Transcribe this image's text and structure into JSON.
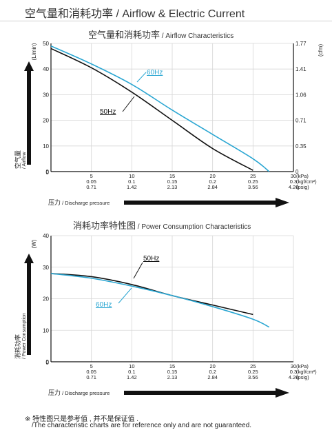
{
  "header": {
    "title": "空气量和消耗功率 / Airflow & Electric Current"
  },
  "chart_data": [
    {
      "type": "line",
      "title": "空气量和消耗功率",
      "subtitle": "/ Airflow Characteristics",
      "ylabel": "(L/min)",
      "ylabel_right": "(cfm)",
      "y_axis_label": "空气量 / Airflow",
      "xlabel": "压力 / Discharge pressure",
      "ylim": [
        0,
        50
      ],
      "yticks": [
        "0",
        "10",
        "20",
        "30",
        "40",
        "50"
      ],
      "yticks_right": [
        "0",
        "0.35",
        "0.71",
        "1.06",
        "1.41",
        "1.77"
      ],
      "xlim": [
        0,
        30
      ],
      "x_units": [
        "(kPa)",
        "(kgf/cm²)",
        "(psig)"
      ],
      "xticks": [
        {
          "kpa": "5",
          "kgf": "0.05",
          "psig": "0.71"
        },
        {
          "kpa": "10",
          "kgf": "0.1",
          "psig": "1.42"
        },
        {
          "kpa": "15",
          "kgf": "0.15",
          "psig": "2.13"
        },
        {
          "kpa": "20",
          "kgf": "0.2",
          "psig": "2.84"
        },
        {
          "kpa": "25",
          "kgf": "0.25",
          "psig": "3.56"
        },
        {
          "kpa": "30",
          "kgf": "0.3",
          "psig": "4.26"
        }
      ],
      "series": [
        {
          "name": "50Hz",
          "color": "#111111",
          "x": [
            0,
            5,
            10,
            15,
            20,
            25
          ],
          "y": [
            48,
            40.5,
            31,
            20,
            9,
            0.5
          ]
        },
        {
          "name": "60Hz",
          "color": "#2aa6d2",
          "x": [
            0,
            5,
            10,
            15,
            20,
            25,
            27
          ],
          "y": [
            49,
            42,
            34,
            24,
            14.5,
            5,
            0
          ]
        }
      ]
    },
    {
      "type": "line",
      "title": "消耗功率特性图",
      "subtitle": "/ Power Consumption Characteristics",
      "ylabel": "(W)",
      "y_axis_label": "消耗功率 / Power Consumption",
      "xlabel": "压力 / Discharge pressure",
      "ylim": [
        0,
        40
      ],
      "yticks": [
        "0",
        "10",
        "20",
        "30",
        "40"
      ],
      "xlim": [
        0,
        30
      ],
      "x_units": [
        "(kPa)",
        "(kgf/cm²)",
        "(psig)"
      ],
      "xticks": [
        {
          "kpa": "5",
          "kgf": "0.05",
          "psig": "0.71"
        },
        {
          "kpa": "10",
          "kgf": "0.1",
          "psig": "1.42"
        },
        {
          "kpa": "15",
          "kgf": "0.15",
          "psig": "2.13"
        },
        {
          "kpa": "20",
          "kgf": "0.2",
          "psig": "2.84"
        },
        {
          "kpa": "25",
          "kgf": "0.25",
          "psig": "3.56"
        },
        {
          "kpa": "30",
          "kgf": "0.3",
          "psig": "4.26"
        }
      ],
      "series": [
        {
          "name": "50Hz",
          "color": "#111111",
          "x": [
            0,
            5,
            10,
            15,
            20,
            25
          ],
          "y": [
            28,
            27,
            24.5,
            21,
            18,
            15
          ]
        },
        {
          "name": "60Hz",
          "color": "#2aa6d2",
          "x": [
            0,
            5,
            10,
            15,
            20,
            25,
            27
          ],
          "y": [
            28,
            26.5,
            24,
            21,
            17.5,
            13.5,
            11
          ]
        }
      ]
    }
  ],
  "notes": {
    "line1": "※ 特性图只是参考值 , 并不是保证值 .",
    "line2": "/The characteristic charts are for reference only and are not guaranteed."
  }
}
